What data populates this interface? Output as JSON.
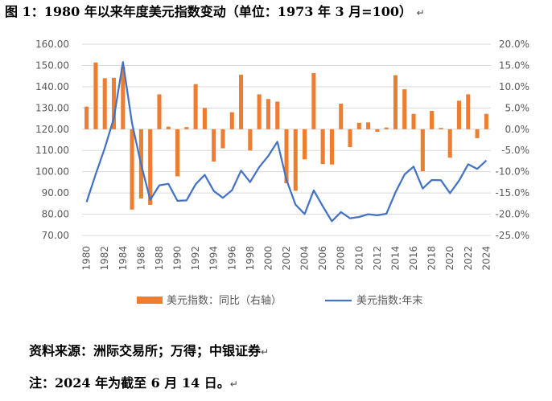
{
  "figure": {
    "title": "图 1：1980 年以来年度美元指数变动（单位：1973 年 3 月=100）",
    "title_mark": "↵",
    "source": "资料来源：洲际交易所；万得；中银证券",
    "source_mark": "↵",
    "note": "注：2024 年为截至 6 月 14 日。",
    "note_mark": "↵"
  },
  "chart_data": {
    "type": "bar+line",
    "categories": [
      "1980",
      "1981",
      "1982",
      "1983",
      "1984",
      "1985",
      "1986",
      "1987",
      "1988",
      "1989",
      "1990",
      "1991",
      "1992",
      "1993",
      "1994",
      "1995",
      "1996",
      "1997",
      "1998",
      "1999",
      "2000",
      "2001",
      "2002",
      "2003",
      "2004",
      "2005",
      "2006",
      "2007",
      "2008",
      "2009",
      "2010",
      "2011",
      "2012",
      "2013",
      "2014",
      "2015",
      "2016",
      "2017",
      "2018",
      "2019",
      "2020",
      "2021",
      "2022",
      "2023",
      "2024"
    ],
    "x_tick_labels": [
      "1980",
      "1982",
      "1984",
      "1986",
      "1988",
      "1990",
      "1992",
      "1994",
      "1996",
      "1998",
      "2000",
      "2002",
      "2004",
      "2006",
      "2008",
      "2010",
      "2012",
      "2014",
      "2016",
      "2018",
      "2020",
      "2022",
      "2024"
    ],
    "left_axis": {
      "ylim": [
        70,
        160
      ],
      "ticks": [
        "70.00",
        "80.00",
        "90.00",
        "100.00",
        "110.00",
        "120.00",
        "130.00",
        "140.00",
        "150.00",
        "160.00"
      ]
    },
    "right_axis": {
      "ylim": [
        -25,
        20
      ],
      "ticks": [
        "-25.0%",
        "-20.0%",
        "-15.0%",
        "-10.0%",
        "-5.0%",
        "0.0%",
        "5.0%",
        "10.0%",
        "15.0%",
        "20.0%"
      ]
    },
    "grid": true,
    "legend_position": "bottom",
    "series": [
      {
        "name": "美元指数：同比（右轴）",
        "type": "bar",
        "axis": "right",
        "color": "#ED7D31",
        "unit": "%",
        "values": [
          5.3,
          15.7,
          12.0,
          12.1,
          14.7,
          -18.9,
          -16.3,
          -17.8,
          8.2,
          0.6,
          -11.1,
          0.5,
          10.6,
          5.0,
          -7.6,
          -4.5,
          4.0,
          12.8,
          -5.0,
          8.2,
          7.1,
          6.5,
          -12.7,
          -14.5,
          -7.1,
          13.2,
          -8.2,
          -8.3,
          6.0,
          -4.2,
          1.5,
          1.6,
          -0.6,
          0.4,
          12.7,
          9.4,
          3.6,
          -9.9,
          4.3,
          0.3,
          -6.7,
          6.7,
          8.2,
          -2.1,
          3.6
        ]
      },
      {
        "name": "美元指数:年末",
        "type": "line",
        "axis": "left",
        "color": "#4472C4",
        "values": [
          85.7,
          98.8,
          111.1,
          125.2,
          151.6,
          122.8,
          103.3,
          86.8,
          93.6,
          94.3,
          86.3,
          86.5,
          94.1,
          98.5,
          90.9,
          87.7,
          91.3,
          100.5,
          95.1,
          102.1,
          107.4,
          114.1,
          96.2,
          84.5,
          80.1,
          91.2,
          83.7,
          76.7,
          81.0,
          78.1,
          78.7,
          80.0,
          79.5,
          80.2,
          90.3,
          98.7,
          102.4,
          92.1,
          96.1,
          96.0,
          89.9,
          95.8,
          103.5,
          101.3,
          105.3
        ]
      }
    ]
  }
}
